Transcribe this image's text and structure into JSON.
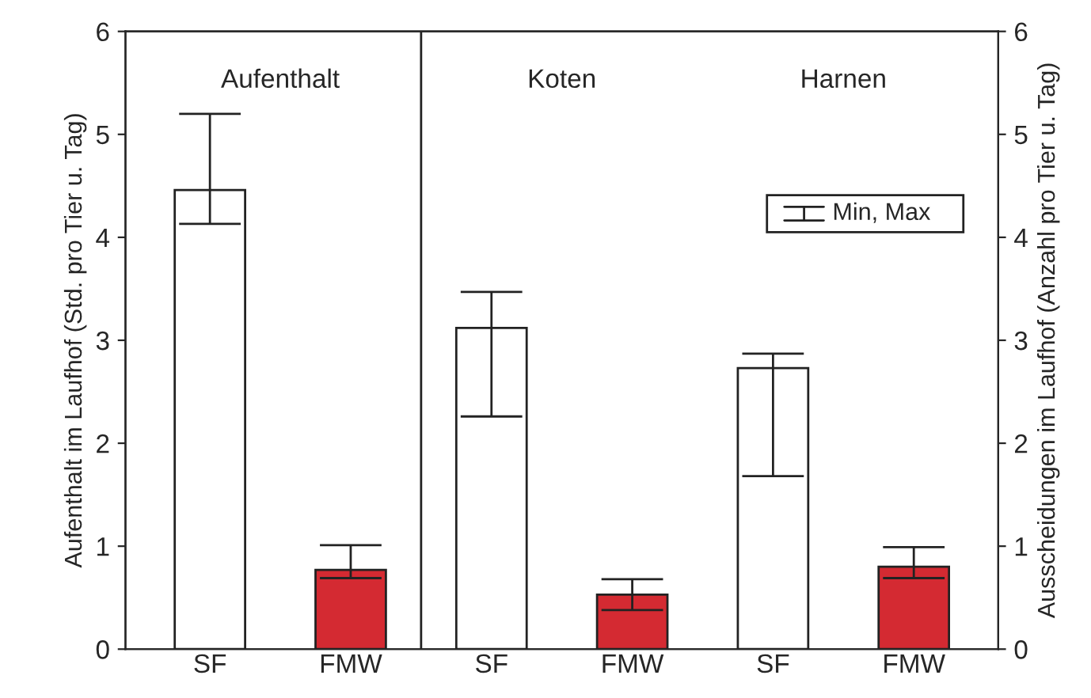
{
  "chart_data": {
    "type": "bar",
    "categories": [
      "SF",
      "FMW",
      "SF",
      "FMW",
      "SF",
      "FMW"
    ],
    "series": [
      {
        "colors": [
          "#ffffff",
          "#d42a32",
          "#ffffff",
          "#d42a32",
          "#ffffff",
          "#d42a32"
        ],
        "values": [
          4.46,
          0.77,
          3.12,
          0.53,
          2.73,
          0.8
        ],
        "errors": [
          [
            4.13,
            5.2
          ],
          [
            0.69,
            1.01
          ],
          [
            2.26,
            3.47
          ],
          [
            0.38,
            0.68
          ],
          [
            1.68,
            2.87
          ],
          [
            0.69,
            0.99
          ]
        ]
      }
    ],
    "ylabel": "Aufenthalt im Laufhof (Std. pro Tier u. Tag)",
    "y2label": "Ausscheidungen im Laufhof (Anzahl pro Tier u. Tag)",
    "ylim": [
      0,
      6
    ],
    "yticks": [
      0,
      1,
      2,
      3,
      4,
      5,
      6
    ],
    "y2lim": [
      0,
      6
    ],
    "y2ticks": [
      0,
      1,
      2,
      3,
      4,
      5,
      6
    ],
    "annotations": [
      "Aufenthalt",
      "Koten",
      "Harnen"
    ],
    "legend_title": "Min, Max",
    "grid": false
  }
}
